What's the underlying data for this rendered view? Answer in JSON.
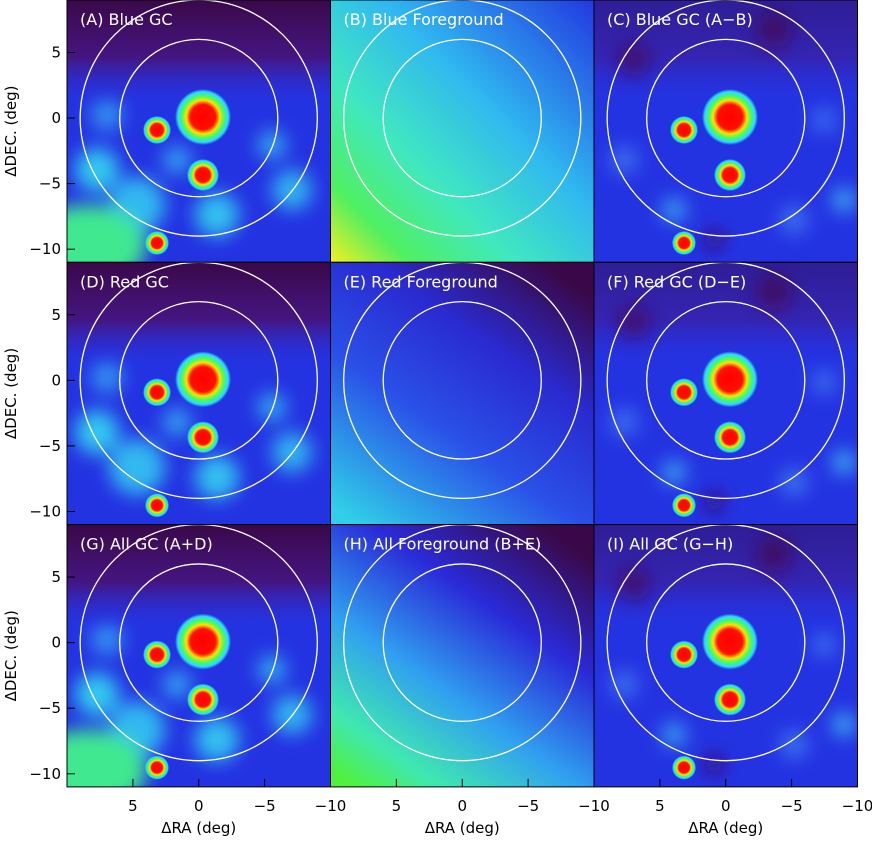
{
  "chart_data": {
    "type": "image-grid",
    "panels": [
      "(A) Blue GC",
      "(B) Blue Foreground",
      "(C) Blue GC (A−B)",
      "(D) Red GC",
      "(E) Red Foreground",
      "(F) Red GC (D−E)",
      "(G) All GC (A+D)",
      "(H) All Foreground (B+E)",
      "(I) All GC (G−H)"
    ],
    "xlabel": "ΔRA (deg)",
    "ylabel": "ΔDEC. (deg)",
    "xlim": [
      10,
      -10
    ],
    "ylim": [
      -11,
      9
    ],
    "xticks": [
      {
        "value": 5,
        "label": "5"
      },
      {
        "value": 0,
        "label": "0"
      },
      {
        "value": -5,
        "label": "−5"
      },
      {
        "value": -10,
        "label": "−10"
      }
    ],
    "yticks": [
      {
        "value": 5,
        "label": "5"
      },
      {
        "value": 0,
        "label": "0"
      },
      {
        "value": -5,
        "label": "−5"
      },
      {
        "value": -10,
        "label": "−10"
      }
    ],
    "circle_radii": [
      6,
      9
    ]
  }
}
